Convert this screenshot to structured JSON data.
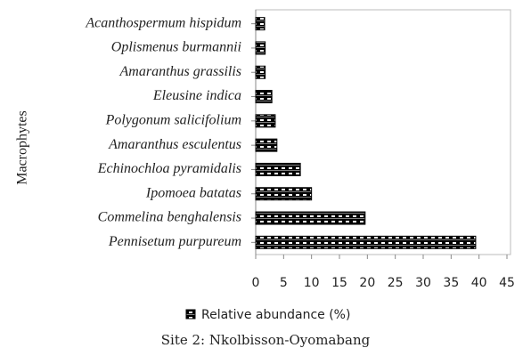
{
  "chart_data": {
    "type": "hbar",
    "title": "Site 2: Nkolbisson-Oyomabang",
    "y_label": "Macrophytes",
    "categories": [
      "Acanthospermum hispidum",
      "Oplismenus burmannii",
      "Amaranthus grassilis",
      "Eleusine indica",
      "Polygonum salicifolium",
      "Amaranthus esculentus",
      "Echinochloa pyramidalis",
      "Ipomoea batatas",
      "Commelina benghalensis",
      "Pennisetum purpureum"
    ],
    "series": [
      {
        "name": "Relative abundance (%)",
        "color": "#000000",
        "values": [
          1.6,
          1.7,
          1.7,
          2.9,
          3.5,
          3.8,
          8.0,
          10.0,
          19.6,
          39.4
        ]
      }
    ],
    "xlim": [
      0,
      45
    ],
    "xticks": [
      0,
      5,
      10,
      15,
      20,
      25,
      30,
      35,
      40,
      45
    ],
    "legend": "bottom"
  }
}
